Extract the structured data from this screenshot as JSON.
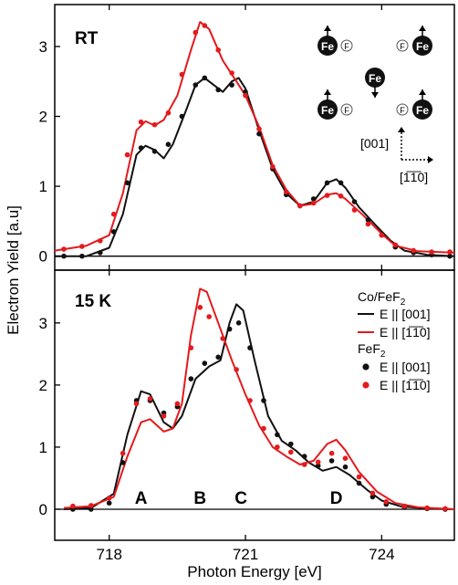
{
  "figure": {
    "xlabel": "Photon Energy [eV]",
    "ylabel": "Electron Yield [a.u]",
    "colors": {
      "black_series": "#111111",
      "red_series": "#e41a1c",
      "axis": "#000000"
    }
  },
  "chart_data": [
    {
      "type": "line",
      "panel": "top",
      "panel_label": "RT",
      "xlim": [
        716.8,
        725.6
      ],
      "ylim": [
        -0.2,
        3.6
      ],
      "x_ticks": [
        718,
        721,
        724
      ],
      "y_ticks": [
        0,
        1,
        2,
        3
      ],
      "grid": false,
      "inset": {
        "atom_label": "Fe",
        "ion_label": "F",
        "axis_vertical_label": "[001]",
        "axis_horizontal_label": "[1̅1̅0]"
      },
      "series": [
        {
          "style": "line",
          "color": "#111111",
          "points": [
            [
              716.8,
              0.0
            ],
            [
              717.5,
              0.0
            ],
            [
              718.0,
              0.12
            ],
            [
              718.3,
              0.6
            ],
            [
              718.6,
              1.45
            ],
            [
              718.8,
              1.58
            ],
            [
              719.0,
              1.52
            ],
            [
              719.2,
              1.4
            ],
            [
              719.4,
              1.6
            ],
            [
              719.7,
              2.1
            ],
            [
              719.9,
              2.45
            ],
            [
              720.1,
              2.55
            ],
            [
              720.3,
              2.45
            ],
            [
              720.5,
              2.35
            ],
            [
              720.7,
              2.5
            ],
            [
              720.85,
              2.55
            ],
            [
              721.0,
              2.4
            ],
            [
              721.3,
              1.8
            ],
            [
              721.6,
              1.25
            ],
            [
              721.9,
              0.9
            ],
            [
              722.2,
              0.72
            ],
            [
              722.5,
              0.78
            ],
            [
              722.8,
              1.05
            ],
            [
              723.0,
              1.1
            ],
            [
              723.2,
              0.98
            ],
            [
              723.5,
              0.7
            ],
            [
              723.9,
              0.42
            ],
            [
              724.2,
              0.22
            ],
            [
              724.5,
              0.08
            ],
            [
              725.0,
              0.02
            ],
            [
              725.6,
              0.0
            ]
          ]
        },
        {
          "style": "line",
          "color": "#e41a1c",
          "points": [
            [
              716.8,
              0.08
            ],
            [
              717.5,
              0.15
            ],
            [
              718.0,
              0.3
            ],
            [
              718.3,
              0.9
            ],
            [
              718.6,
              1.8
            ],
            [
              718.8,
              1.93
            ],
            [
              719.0,
              1.87
            ],
            [
              719.2,
              1.95
            ],
            [
              719.5,
              2.3
            ],
            [
              719.8,
              2.95
            ],
            [
              720.0,
              3.35
            ],
            [
              720.2,
              3.25
            ],
            [
              720.5,
              2.8
            ],
            [
              720.8,
              2.5
            ],
            [
              721.0,
              2.3
            ],
            [
              721.3,
              1.85
            ],
            [
              721.6,
              1.3
            ],
            [
              721.9,
              0.95
            ],
            [
              722.2,
              0.72
            ],
            [
              722.5,
              0.75
            ],
            [
              722.8,
              0.88
            ],
            [
              723.0,
              0.9
            ],
            [
              723.2,
              0.82
            ],
            [
              723.6,
              0.58
            ],
            [
              724.0,
              0.32
            ],
            [
              724.3,
              0.15
            ],
            [
              724.8,
              0.07
            ],
            [
              725.6,
              0.05
            ]
          ]
        },
        {
          "style": "dots",
          "color": "#111111",
          "points": [
            [
              717.0,
              0.0
            ],
            [
              717.4,
              0.0
            ],
            [
              717.8,
              0.05
            ],
            [
              718.1,
              0.35
            ],
            [
              718.4,
              1.05
            ],
            [
              718.7,
              1.55
            ],
            [
              719.0,
              1.5
            ],
            [
              719.3,
              1.6
            ],
            [
              719.6,
              2.0
            ],
            [
              719.9,
              2.45
            ],
            [
              720.1,
              2.55
            ],
            [
              720.4,
              2.38
            ],
            [
              720.7,
              2.45
            ],
            [
              721.0,
              2.35
            ],
            [
              721.3,
              1.75
            ],
            [
              721.6,
              1.25
            ],
            [
              721.9,
              0.88
            ],
            [
              722.2,
              0.72
            ],
            [
              722.5,
              0.82
            ],
            [
              722.8,
              1.05
            ],
            [
              723.1,
              1.05
            ],
            [
              723.4,
              0.78
            ],
            [
              723.7,
              0.52
            ],
            [
              724.0,
              0.3
            ],
            [
              724.3,
              0.13
            ],
            [
              724.7,
              0.05
            ],
            [
              725.1,
              0.02
            ],
            [
              725.5,
              0.0
            ]
          ]
        },
        {
          "style": "dots",
          "color": "#e41a1c",
          "points": [
            [
              717.0,
              0.1
            ],
            [
              717.4,
              0.14
            ],
            [
              717.8,
              0.22
            ],
            [
              718.1,
              0.6
            ],
            [
              718.4,
              1.45
            ],
            [
              718.7,
              1.92
            ],
            [
              719.0,
              1.88
            ],
            [
              719.3,
              2.05
            ],
            [
              719.6,
              2.6
            ],
            [
              719.9,
              3.2
            ],
            [
              720.1,
              3.3
            ],
            [
              720.4,
              2.95
            ],
            [
              720.7,
              2.62
            ],
            [
              721.0,
              2.3
            ],
            [
              721.3,
              1.82
            ],
            [
              721.6,
              1.28
            ],
            [
              721.9,
              0.92
            ],
            [
              722.2,
              0.72
            ],
            [
              722.5,
              0.76
            ],
            [
              722.8,
              0.87
            ],
            [
              723.1,
              0.86
            ],
            [
              723.4,
              0.66
            ],
            [
              723.7,
              0.46
            ],
            [
              724.0,
              0.3
            ],
            [
              724.3,
              0.16
            ],
            [
              724.7,
              0.08
            ],
            [
              725.1,
              0.06
            ],
            [
              725.5,
              0.06
            ]
          ]
        }
      ]
    },
    {
      "type": "line",
      "panel": "bottom",
      "panel_label": "15 K",
      "xlim": [
        716.8,
        725.6
      ],
      "ylim": [
        -0.5,
        3.85
      ],
      "x_ticks": [
        718,
        721,
        724
      ],
      "y_ticks": [
        0,
        1,
        2,
        3
      ],
      "grid": false,
      "legend_position": "top-right",
      "legend": {
        "group1_title": "Co/FeF",
        "group1_sub": "2",
        "group2_title": "FeF",
        "group2_sub": "2",
        "entry_black": "E || [001]",
        "entry_red": "E || [1̅1̅0]"
      },
      "peak_labels": [
        {
          "text": "A",
          "x": 718.7
        },
        {
          "text": "B",
          "x": 720.0
        },
        {
          "text": "C",
          "x": 720.9
        },
        {
          "text": "D",
          "x": 723.0
        }
      ],
      "series": [
        {
          "name": "Co/FeF2 E || [001]",
          "style": "line",
          "color": "#111111",
          "points": [
            [
              717.0,
              0.0
            ],
            [
              717.6,
              0.02
            ],
            [
              718.1,
              0.25
            ],
            [
              718.4,
              1.2
            ],
            [
              718.7,
              1.9
            ],
            [
              718.9,
              1.85
            ],
            [
              719.2,
              1.4
            ],
            [
              719.4,
              1.3
            ],
            [
              719.6,
              1.5
            ],
            [
              719.9,
              2.1
            ],
            [
              720.2,
              2.3
            ],
            [
              720.45,
              2.4
            ],
            [
              720.65,
              3.0
            ],
            [
              720.8,
              3.3
            ],
            [
              720.95,
              3.2
            ],
            [
              721.2,
              2.4
            ],
            [
              721.5,
              1.5
            ],
            [
              721.8,
              1.1
            ],
            [
              722.1,
              0.95
            ],
            [
              722.4,
              0.75
            ],
            [
              722.7,
              0.62
            ],
            [
              723.0,
              0.68
            ],
            [
              723.3,
              0.55
            ],
            [
              723.7,
              0.3
            ],
            [
              724.0,
              0.14
            ],
            [
              724.4,
              0.05
            ],
            [
              725.0,
              0.01
            ],
            [
              725.6,
              0.0
            ]
          ]
        },
        {
          "name": "Co/FeF2 E || [1̅1̅0]",
          "style": "line",
          "color": "#e41a1c",
          "points": [
            [
              717.0,
              0.02
            ],
            [
              717.6,
              0.05
            ],
            [
              718.1,
              0.2
            ],
            [
              718.4,
              0.85
            ],
            [
              718.7,
              1.4
            ],
            [
              718.9,
              1.45
            ],
            [
              719.2,
              1.25
            ],
            [
              719.4,
              1.3
            ],
            [
              719.6,
              1.7
            ],
            [
              719.8,
              2.8
            ],
            [
              720.0,
              3.55
            ],
            [
              720.15,
              3.5
            ],
            [
              720.4,
              3.0
            ],
            [
              720.7,
              2.4
            ],
            [
              721.0,
              1.85
            ],
            [
              721.3,
              1.35
            ],
            [
              721.6,
              1.0
            ],
            [
              721.9,
              0.85
            ],
            [
              722.2,
              0.72
            ],
            [
              722.5,
              0.78
            ],
            [
              722.8,
              1.05
            ],
            [
              723.0,
              1.12
            ],
            [
              723.2,
              0.95
            ],
            [
              723.5,
              0.6
            ],
            [
              723.9,
              0.28
            ],
            [
              724.3,
              0.1
            ],
            [
              724.8,
              0.03
            ],
            [
              725.6,
              0.0
            ]
          ]
        },
        {
          "name": "FeF2 E || [001]",
          "style": "dots",
          "color": "#111111",
          "points": [
            [
              717.2,
              0.0
            ],
            [
              717.6,
              0.0
            ],
            [
              718.0,
              0.1
            ],
            [
              718.3,
              0.75
            ],
            [
              718.6,
              1.75
            ],
            [
              718.9,
              1.75
            ],
            [
              719.2,
              1.55
            ],
            [
              719.5,
              1.65
            ],
            [
              719.8,
              2.1
            ],
            [
              720.1,
              2.35
            ],
            [
              720.4,
              2.45
            ],
            [
              720.65,
              2.9
            ],
            [
              720.85,
              3.0
            ],
            [
              721.1,
              2.6
            ],
            [
              721.4,
              1.75
            ],
            [
              721.7,
              1.2
            ],
            [
              722.0,
              1.05
            ],
            [
              722.3,
              0.85
            ],
            [
              722.6,
              0.7
            ],
            [
              722.9,
              0.78
            ],
            [
              723.2,
              0.68
            ],
            [
              723.5,
              0.42
            ],
            [
              723.8,
              0.2
            ],
            [
              724.1,
              0.08
            ],
            [
              724.5,
              0.03
            ],
            [
              725.0,
              0.01
            ],
            [
              725.4,
              0.0
            ]
          ]
        },
        {
          "name": "FeF2 E || [1̅1̅0]",
          "style": "dots",
          "color": "#e41a1c",
          "points": [
            [
              717.2,
              0.05
            ],
            [
              717.6,
              0.06
            ],
            [
              718.0,
              0.18
            ],
            [
              718.3,
              0.9
            ],
            [
              718.6,
              1.7
            ],
            [
              718.9,
              1.78
            ],
            [
              719.2,
              1.5
            ],
            [
              719.5,
              1.7
            ],
            [
              719.8,
              2.6
            ],
            [
              720.0,
              3.25
            ],
            [
              720.2,
              3.1
            ],
            [
              720.5,
              2.75
            ],
            [
              720.8,
              2.25
            ],
            [
              721.1,
              1.75
            ],
            [
              721.4,
              1.3
            ],
            [
              721.7,
              1.0
            ],
            [
              722.0,
              0.92
            ],
            [
              722.3,
              0.72
            ],
            [
              722.6,
              0.76
            ],
            [
              722.9,
              0.9
            ],
            [
              723.2,
              0.82
            ],
            [
              723.5,
              0.52
            ],
            [
              723.8,
              0.26
            ],
            [
              724.1,
              0.12
            ],
            [
              724.5,
              0.05
            ],
            [
              725.0,
              0.02
            ],
            [
              725.4,
              0.01
            ]
          ]
        }
      ]
    }
  ]
}
